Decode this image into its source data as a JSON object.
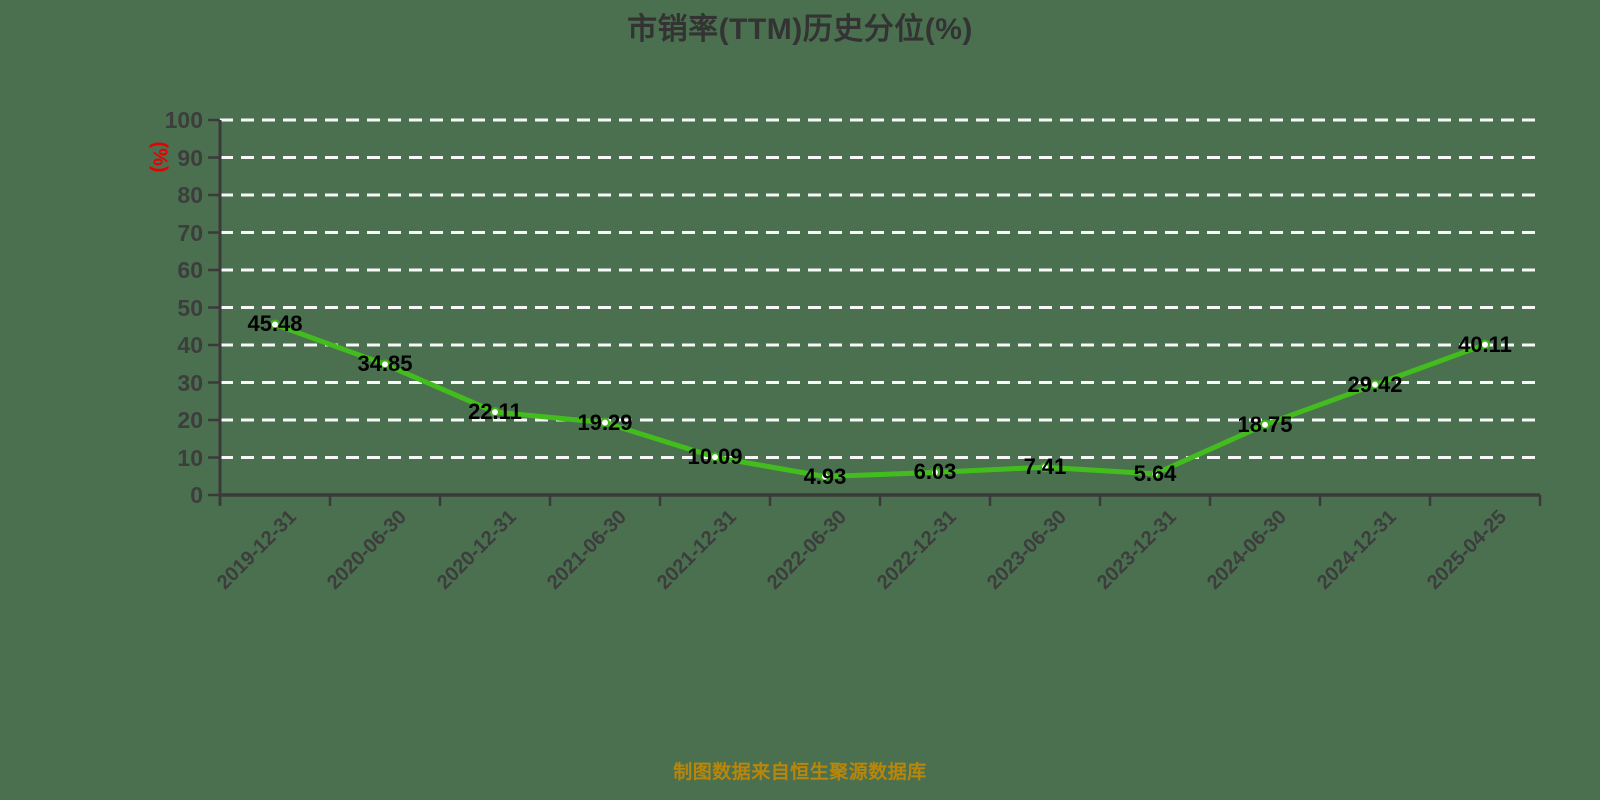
{
  "title": "市销率(TTM)历史分位(%)",
  "y_axis_name": "(%)",
  "source_note": "制图数据来自恒生聚源数据库",
  "colors": {
    "background": "#4a7050",
    "title_text": "#333333",
    "axis": "#3a3a3a",
    "tick_label": "#3d3d3d",
    "grid_line": "#f7f7f7",
    "series_line": "#43bd1d",
    "marker_fill": "#ffffff",
    "marker_stroke": "#3db317",
    "value_label": "#000000",
    "y_axis_name_color": "#e60000",
    "source_note_color": "#b8860b"
  },
  "chart_data": {
    "type": "line",
    "title": "市销率(TTM)历史分位(%)",
    "ylabel": "(%)",
    "xlabel": "",
    "categories": [
      "2019-12-31",
      "2020-06-30",
      "2020-12-31",
      "2021-06-30",
      "2021-12-31",
      "2022-06-30",
      "2022-12-31",
      "2023-06-30",
      "2023-12-31",
      "2024-06-30",
      "2024-12-31",
      "2025-04-25"
    ],
    "values": [
      45.48,
      34.85,
      22.11,
      19.29,
      10.09,
      4.93,
      6.03,
      7.41,
      5.64,
      18.75,
      29.42,
      40.11
    ],
    "ylim": [
      0,
      100
    ],
    "ytick_step": 10,
    "grid": "horizontal-dashed",
    "legend_position": "none",
    "point_labels_visible": true,
    "x_labels_rotated_degrees": 45
  }
}
